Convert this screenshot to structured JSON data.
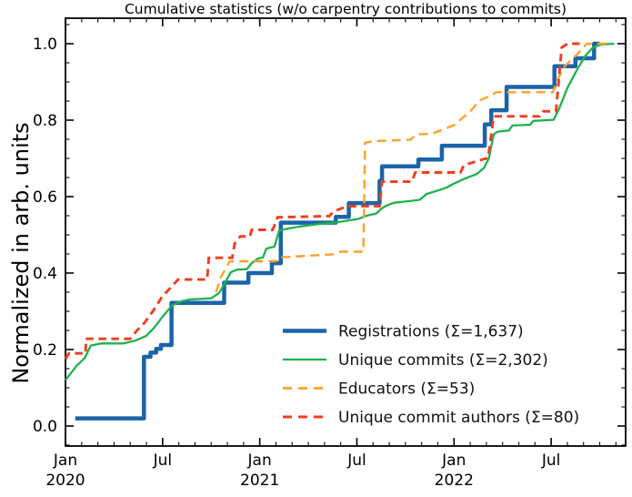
{
  "chart_data": {
    "type": "line",
    "title": "Cumulative statistics (w/o carpentry contributions to commits)",
    "xlabel": "",
    "ylabel": "Normalized in arb. units",
    "x_axis": {
      "unit": "months since Jan 2020",
      "range": [
        0,
        34.6
      ],
      "major_tick_months": [
        0,
        6,
        12,
        18,
        24,
        30
      ],
      "major_tick_labels": [
        [
          "Jan",
          "2020"
        ],
        [
          "Jul"
        ],
        [
          "Jan",
          "2021"
        ],
        [
          "Jul"
        ],
        [
          "Jan",
          "2022"
        ],
        [
          "Jul"
        ]
      ],
      "minor_tick_every_months": 1
    },
    "y_axis": {
      "range": [
        -0.05,
        1.07
      ],
      "major_ticks": [
        0.0,
        0.2,
        0.4,
        0.6,
        0.8,
        1.0
      ],
      "major_tick_labels": [
        "0.0",
        "0.2",
        "0.4",
        "0.6",
        "0.8",
        "1.0"
      ],
      "minor_tick_step": 0.05
    },
    "grid": false,
    "legend_position": "lower right inside",
    "series": [
      {
        "name": "registrations",
        "legend_label": "Registrations  (Σ=1,637)",
        "total": "1,637",
        "color": "#1c63a8",
        "line_width": 4.5,
        "dash": null,
        "points": [
          [
            0.6,
            0.02
          ],
          [
            4.85,
            0.02
          ],
          [
            4.85,
            0.181
          ],
          [
            5.25,
            0.181
          ],
          [
            5.25,
            0.192
          ],
          [
            5.6,
            0.192
          ],
          [
            5.6,
            0.202
          ],
          [
            5.9,
            0.202
          ],
          [
            5.9,
            0.212
          ],
          [
            6.55,
            0.212
          ],
          [
            6.55,
            0.322
          ],
          [
            9.8,
            0.322
          ],
          [
            9.8,
            0.375
          ],
          [
            11.3,
            0.375
          ],
          [
            11.3,
            0.4
          ],
          [
            12.75,
            0.4
          ],
          [
            12.75,
            0.426
          ],
          [
            13.3,
            0.426
          ],
          [
            13.3,
            0.532
          ],
          [
            16.7,
            0.532
          ],
          [
            16.7,
            0.547
          ],
          [
            17.5,
            0.547
          ],
          [
            17.5,
            0.583
          ],
          [
            19.4,
            0.583
          ],
          [
            19.4,
            0.641
          ],
          [
            19.55,
            0.641
          ],
          [
            19.55,
            0.679
          ],
          [
            21.8,
            0.679
          ],
          [
            21.8,
            0.697
          ],
          [
            23.25,
            0.697
          ],
          [
            23.25,
            0.733
          ],
          [
            25.9,
            0.733
          ],
          [
            25.9,
            0.789
          ],
          [
            26.3,
            0.789
          ],
          [
            26.3,
            0.826
          ],
          [
            27.25,
            0.826
          ],
          [
            27.25,
            0.887
          ],
          [
            30.2,
            0.887
          ],
          [
            30.2,
            0.941
          ],
          [
            31.5,
            0.941
          ],
          [
            31.5,
            0.962
          ],
          [
            32.65,
            0.962
          ],
          [
            32.65,
            1.0
          ],
          [
            33.0,
            1.0
          ]
        ]
      },
      {
        "name": "unique-commits",
        "legend_label": "Unique commits (Σ=2,302)",
        "total": "2,302",
        "color": "#1db24b",
        "line_width": 2.3,
        "dash": null,
        "points": [
          [
            0,
            0.12
          ],
          [
            0.7,
            0.158
          ],
          [
            1.2,
            0.178
          ],
          [
            1.55,
            0.21
          ],
          [
            2.2,
            0.216
          ],
          [
            3.6,
            0.216
          ],
          [
            4.3,
            0.223
          ],
          [
            5.0,
            0.236
          ],
          [
            5.5,
            0.258
          ],
          [
            6.0,
            0.286
          ],
          [
            6.6,
            0.316
          ],
          [
            7.2,
            0.327
          ],
          [
            7.7,
            0.331
          ],
          [
            9.0,
            0.334
          ],
          [
            9.5,
            0.348
          ],
          [
            9.9,
            0.378
          ],
          [
            10.2,
            0.402
          ],
          [
            10.6,
            0.409
          ],
          [
            11.2,
            0.41
          ],
          [
            11.5,
            0.426
          ],
          [
            11.9,
            0.438
          ],
          [
            12.2,
            0.441
          ],
          [
            12.4,
            0.464
          ],
          [
            12.9,
            0.469
          ],
          [
            13.2,
            0.511
          ],
          [
            13.7,
            0.516
          ],
          [
            14.5,
            0.522
          ],
          [
            15.6,
            0.528
          ],
          [
            16.6,
            0.532
          ],
          [
            17.4,
            0.537
          ],
          [
            18.1,
            0.542
          ],
          [
            18.6,
            0.55
          ],
          [
            19.2,
            0.556
          ],
          [
            19.5,
            0.568
          ],
          [
            19.8,
            0.576
          ],
          [
            20.3,
            0.584
          ],
          [
            21.4,
            0.589
          ],
          [
            21.9,
            0.592
          ],
          [
            22.3,
            0.607
          ],
          [
            23.0,
            0.616
          ],
          [
            23.5,
            0.623
          ],
          [
            24.0,
            0.634
          ],
          [
            24.6,
            0.646
          ],
          [
            25.4,
            0.659
          ],
          [
            25.85,
            0.675
          ],
          [
            26.15,
            0.7
          ],
          [
            26.45,
            0.763
          ],
          [
            26.7,
            0.77
          ],
          [
            27.4,
            0.773
          ],
          [
            27.6,
            0.786
          ],
          [
            28.7,
            0.788
          ],
          [
            28.9,
            0.798
          ],
          [
            30.15,
            0.801
          ],
          [
            30.5,
            0.831
          ],
          [
            31.0,
            0.884
          ],
          [
            31.6,
            0.932
          ],
          [
            32.1,
            0.968
          ],
          [
            32.6,
            0.991
          ],
          [
            33.1,
            0.998
          ],
          [
            33.9,
            1.0
          ]
        ]
      },
      {
        "name": "educators",
        "legend_label": "Educators (Σ=53)",
        "total": "53",
        "color": "#ffa126",
        "line_width": 2.4,
        "dash": [
          10,
          6
        ],
        "points": [
          [
            9.3,
            0.35
          ],
          [
            9.6,
            0.39
          ],
          [
            10.15,
            0.431
          ],
          [
            13.0,
            0.431
          ],
          [
            13.2,
            0.441
          ],
          [
            16.5,
            0.449
          ],
          [
            17.0,
            0.456
          ],
          [
            18.4,
            0.456
          ],
          [
            18.5,
            0.741
          ],
          [
            19.0,
            0.745
          ],
          [
            21.3,
            0.749
          ],
          [
            21.7,
            0.763
          ],
          [
            22.6,
            0.764
          ],
          [
            24.0,
            0.787
          ],
          [
            25.0,
            0.823
          ],
          [
            25.6,
            0.852
          ],
          [
            26.3,
            0.865
          ],
          [
            26.6,
            0.873
          ],
          [
            30.1,
            0.873
          ],
          [
            30.5,
            0.915
          ],
          [
            30.85,
            0.942
          ],
          [
            31.6,
            0.972
          ],
          [
            32.2,
            1.0
          ],
          [
            33.5,
            1.0
          ]
        ]
      },
      {
        "name": "unique-commit-authors",
        "legend_label": "Unique commit authors (Σ=80)",
        "total": "80",
        "color": "#f43c1e",
        "line_width": 2.9,
        "dash": [
          8.5,
          5.5
        ],
        "points": [
          [
            0,
            0.175
          ],
          [
            0.2,
            0.19
          ],
          [
            1.25,
            0.19
          ],
          [
            1.25,
            0.228
          ],
          [
            4.0,
            0.228
          ],
          [
            4.4,
            0.249
          ],
          [
            4.9,
            0.271
          ],
          [
            5.4,
            0.3
          ],
          [
            6.0,
            0.34
          ],
          [
            6.6,
            0.366
          ],
          [
            6.95,
            0.383
          ],
          [
            8.75,
            0.383
          ],
          [
            8.85,
            0.44
          ],
          [
            10.3,
            0.44
          ],
          [
            10.45,
            0.477
          ],
          [
            10.8,
            0.496
          ],
          [
            11.4,
            0.496
          ],
          [
            11.5,
            0.513
          ],
          [
            12.8,
            0.513
          ],
          [
            13.1,
            0.546
          ],
          [
            16.3,
            0.549
          ],
          [
            16.55,
            0.561
          ],
          [
            17.4,
            0.575
          ],
          [
            19.4,
            0.575
          ],
          [
            19.55,
            0.639
          ],
          [
            21.4,
            0.639
          ],
          [
            21.6,
            0.663
          ],
          [
            24.4,
            0.663
          ],
          [
            24.6,
            0.682
          ],
          [
            25.5,
            0.694
          ],
          [
            26.1,
            0.701
          ],
          [
            26.45,
            0.81
          ],
          [
            29.3,
            0.81
          ],
          [
            29.5,
            0.823
          ],
          [
            30.3,
            0.823
          ],
          [
            30.65,
            0.99
          ],
          [
            31.0,
            1.0
          ],
          [
            31.85,
            1.0
          ]
        ]
      }
    ]
  }
}
